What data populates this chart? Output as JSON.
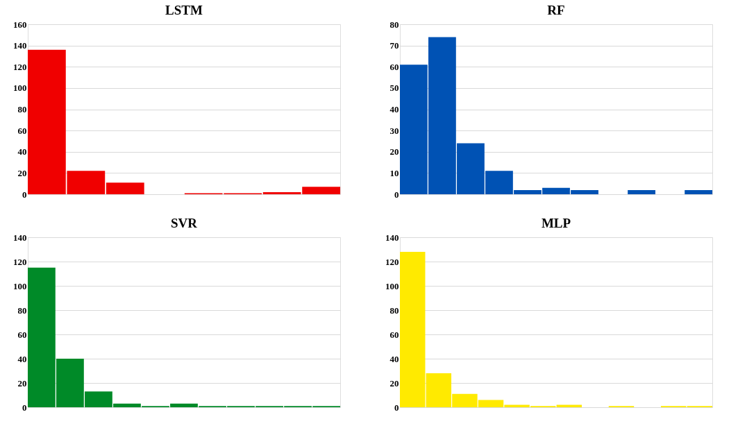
{
  "chart_data": [
    {
      "type": "bar",
      "title": "LSTM",
      "categories": [
        null,
        null,
        null,
        null,
        null,
        null,
        null,
        null
      ],
      "values": [
        136,
        22,
        11,
        0,
        1,
        1,
        2,
        7
      ],
      "color": "#f00000",
      "ylim": [
        0,
        160
      ],
      "yticks": [
        0,
        20,
        40,
        60,
        80,
        100,
        120,
        140,
        160
      ],
      "grid": "y",
      "tick_labels": "y"
    },
    {
      "type": "bar",
      "title": "RF",
      "categories": [
        null,
        null,
        null,
        null,
        null,
        null,
        null,
        null,
        null,
        null,
        null
      ],
      "values": [
        61,
        74,
        24,
        11,
        2,
        3,
        2,
        0,
        2,
        0,
        2
      ],
      "color": "#0052b4",
      "ylim": [
        0,
        80
      ],
      "yticks": [
        0,
        10,
        20,
        30,
        40,
        50,
        60,
        70,
        80
      ],
      "grid": "y",
      "tick_labels": "y"
    },
    {
      "type": "bar",
      "title": "SVR",
      "categories": [
        null,
        null,
        null,
        null,
        null,
        null,
        null,
        null,
        null,
        null,
        null
      ],
      "values": [
        115,
        40,
        13,
        3,
        1,
        3,
        1,
        1,
        1,
        1,
        1
      ],
      "color": "#008a28",
      "ylim": [
        0,
        140
      ],
      "yticks": [
        0,
        20,
        40,
        60,
        80,
        100,
        120,
        140
      ],
      "grid": "y",
      "tick_labels": "y"
    },
    {
      "type": "bar",
      "title": "MLP",
      "categories": [
        null,
        null,
        null,
        null,
        null,
        null,
        null,
        null,
        null,
        null,
        null,
        null
      ],
      "values": [
        128,
        28,
        11,
        6,
        2,
        1,
        2,
        0,
        1,
        0,
        1,
        1
      ],
      "color": "#ffea00",
      "ylim": [
        0,
        140
      ],
      "yticks": [
        0,
        20,
        40,
        60,
        80,
        100,
        120,
        140
      ],
      "grid": "y",
      "tick_labels": "y"
    }
  ]
}
